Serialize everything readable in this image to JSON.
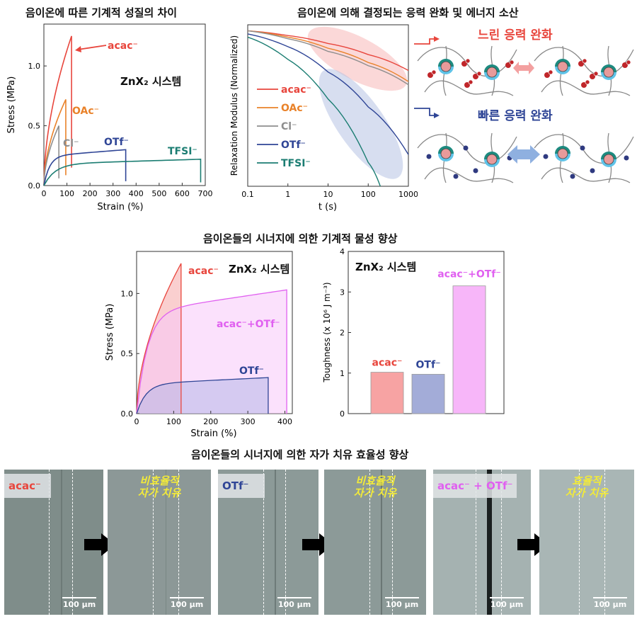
{
  "titles": {
    "stress_strain": "음이온에 따른 기계적 성질의 차이",
    "relaxation": "음이온에 의해 결정되는 응력 완화 및 에너지 소산",
    "synergy_mech": "음이온들의 시너지에 의한 기계적 물성 향상",
    "synergy_heal": "음이온들의 시너지에 의한 자가 치유 효율성 향상"
  },
  "system_label": "ZnX₂ 시스템",
  "colors": {
    "acac": "#e8463d",
    "oac": "#e9822a",
    "cl": "#8e8e8e",
    "otf": "#2f4596",
    "tfsi": "#1b7d72",
    "mix": "#e060f0"
  },
  "chart_data": [
    {
      "type": "line",
      "xlabel": "Strain (%)",
      "ylabel": "Stress (MPa)",
      "xlim": [
        0,
        700
      ],
      "ylim": [
        0,
        1.35
      ],
      "xticks": [
        "0",
        "100",
        "200",
        "300",
        "400",
        "500",
        "600",
        "700"
      ],
      "yticks": [
        "0.0",
        "0.5",
        "1.0"
      ],
      "series": [
        {
          "name": "acac⁻",
          "break_strain": 120,
          "max_stress": 1.25
        },
        {
          "name": "OAc⁻",
          "break_strain": 95,
          "max_stress": 0.72
        },
        {
          "name": "Cl⁻",
          "break_strain": 65,
          "max_stress": 0.5
        },
        {
          "name": "OTf⁻",
          "break_strain": 355,
          "max_stress": 0.3
        },
        {
          "name": "TFSI⁻",
          "break_strain": 680,
          "max_stress": 0.22
        }
      ]
    },
    {
      "type": "line",
      "xlabel": "t (s)",
      "ylabel": "Relaxation Modulus (Normalized)",
      "xscale": "log",
      "xlim": [
        0.1,
        1000
      ],
      "xticks": [
        "0.1",
        "1",
        "10",
        "100",
        "1000"
      ],
      "series": [
        {
          "name": "acac⁻",
          "x": [
            0.1,
            1,
            10,
            100,
            1000
          ],
          "y": [
            0.98,
            0.95,
            0.9,
            0.83,
            0.73
          ]
        },
        {
          "name": "OAc⁻",
          "x": [
            0.1,
            1,
            10,
            100,
            1000
          ],
          "y": [
            0.98,
            0.94,
            0.87,
            0.78,
            0.66
          ]
        },
        {
          "name": "Cl⁻",
          "x": [
            0.1,
            1,
            10,
            100,
            1000
          ],
          "y": [
            0.98,
            0.93,
            0.85,
            0.76,
            0.64
          ]
        },
        {
          "name": "OTf⁻",
          "x": [
            0.1,
            1,
            10,
            100,
            1000
          ],
          "y": [
            0.96,
            0.88,
            0.72,
            0.5,
            0.2
          ]
        },
        {
          "name": "TFSI⁻",
          "x": [
            0.1,
            1,
            10,
            100,
            200
          ],
          "y": [
            0.94,
            0.8,
            0.55,
            0.15,
            0.0
          ]
        }
      ]
    },
    {
      "type": "area",
      "xlabel": "Strain (%)",
      "ylabel": "Stress (MPa)",
      "xlim": [
        0,
        420
      ],
      "ylim": [
        0,
        1.35
      ],
      "xticks": [
        "0",
        "100",
        "200",
        "300",
        "400"
      ],
      "yticks": [
        "0.0",
        "0.5",
        "1.0"
      ],
      "series": [
        {
          "name": "acac⁻",
          "break_strain": 120,
          "max_stress": 1.25
        },
        {
          "name": "acac⁻+OTf⁻",
          "break_strain": 405,
          "max_stress": 1.03
        },
        {
          "name": "OTf⁻",
          "break_strain": 355,
          "max_stress": 0.3
        }
      ]
    },
    {
      "type": "bar",
      "ylabel": "Toughness (x 10⁶ J m⁻³)",
      "ylim": [
        0,
        4
      ],
      "yticks": [
        "0",
        "1",
        "2",
        "3",
        "4"
      ],
      "categories": [
        "acac⁻",
        "OTf⁻",
        "acac⁻+OTf⁻"
      ],
      "values": [
        1.02,
        0.97,
        3.15
      ]
    }
  ],
  "relaxation_panel": {
    "slow_label": "느린 응력 완화",
    "fast_label": "빠른 응력 완화"
  },
  "healing": {
    "scale_bar": "100 μm",
    "panels": [
      {
        "label": "acac⁻",
        "heal_text": "비효율적\n자가 치유"
      },
      {
        "label": "OTf⁻",
        "heal_text": "비효율적\n자가 치유"
      },
      {
        "label": "acac⁻ + OTf⁻",
        "heal_text": "효율적\n자가 치유"
      }
    ]
  }
}
